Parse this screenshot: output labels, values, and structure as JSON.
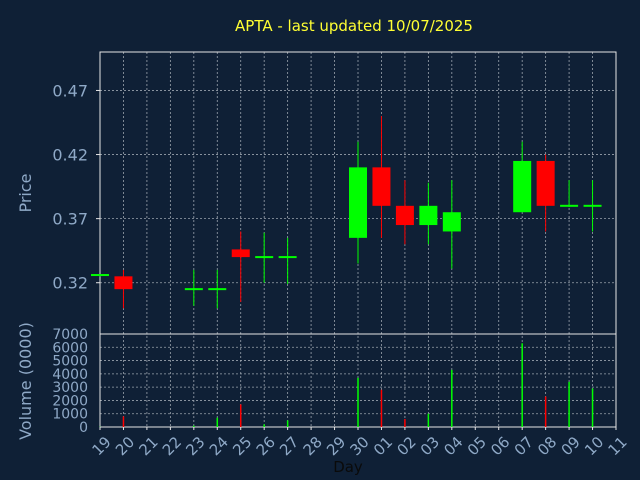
{
  "colors": {
    "background": "#0f2036",
    "axis": "#e6e6e6",
    "grid": "#9aa3ad",
    "title": "#ffff33",
    "label": "#8fa9c7",
    "up": "#00ff00",
    "down": "#ff0000"
  },
  "chart_data": [
    {
      "type": "candlestick",
      "title": "APTA - last updated 10/07/2025",
      "ylabel": "Price",
      "ylim": [
        0.28,
        0.5
      ],
      "yticks": [
        "0.32",
        "0.37",
        "0.42",
        "0.47"
      ],
      "ytick_values": [
        0.32,
        0.37,
        0.42,
        0.47
      ],
      "grid": true,
      "x": [
        "19",
        "20",
        "21",
        "22",
        "23",
        "24",
        "25",
        "26",
        "27",
        "28",
        "29",
        "30",
        "01",
        "02",
        "03",
        "04",
        "05",
        "06",
        "07",
        "08",
        "09",
        "10",
        "11"
      ],
      "candles": [
        {
          "x": "19",
          "open": 0.325,
          "high": 0.326,
          "low": 0.325,
          "close": 0.326,
          "dir": "up"
        },
        {
          "x": "20",
          "open": 0.325,
          "high": 0.33,
          "low": 0.3,
          "close": 0.315,
          "dir": "down"
        },
        {
          "x": "23",
          "open": 0.315,
          "high": 0.33,
          "low": 0.302,
          "close": 0.315,
          "dir": "up"
        },
        {
          "x": "24",
          "open": 0.315,
          "high": 0.33,
          "low": 0.3,
          "close": 0.315,
          "dir": "up"
        },
        {
          "x": "25",
          "open": 0.346,
          "high": 0.36,
          "low": 0.305,
          "close": 0.34,
          "dir": "down"
        },
        {
          "x": "26",
          "open": 0.34,
          "high": 0.359,
          "low": 0.32,
          "close": 0.34,
          "dir": "up"
        },
        {
          "x": "27",
          "open": 0.34,
          "high": 0.355,
          "low": 0.319,
          "close": 0.34,
          "dir": "up"
        },
        {
          "x": "30",
          "open": 0.355,
          "high": 0.43,
          "low": 0.335,
          "close": 0.41,
          "dir": "up"
        },
        {
          "x": "01",
          "open": 0.41,
          "high": 0.45,
          "low": 0.355,
          "close": 0.38,
          "dir": "down"
        },
        {
          "x": "02",
          "open": 0.38,
          "high": 0.4,
          "low": 0.35,
          "close": 0.365,
          "dir": "down"
        },
        {
          "x": "03",
          "open": 0.365,
          "high": 0.398,
          "low": 0.35,
          "close": 0.38,
          "dir": "up"
        },
        {
          "x": "04",
          "open": 0.36,
          "high": 0.4,
          "low": 0.331,
          "close": 0.375,
          "dir": "up"
        },
        {
          "x": "07",
          "open": 0.375,
          "high": 0.43,
          "low": 0.375,
          "close": 0.415,
          "dir": "up"
        },
        {
          "x": "08",
          "open": 0.415,
          "high": 0.42,
          "low": 0.36,
          "close": 0.38,
          "dir": "down"
        },
        {
          "x": "09",
          "open": 0.379,
          "high": 0.4,
          "low": 0.379,
          "close": 0.38,
          "dir": "up"
        },
        {
          "x": "10",
          "open": 0.379,
          "high": 0.4,
          "low": 0.36,
          "close": 0.38,
          "dir": "up"
        }
      ]
    },
    {
      "type": "bar",
      "ylabel": "Volume (0000)",
      "xlabel": "Day",
      "ylim": [
        0,
        7000
      ],
      "yticks": [
        "0",
        "1000",
        "2000",
        "3000",
        "4000",
        "5000",
        "6000",
        "7000"
      ],
      "ytick_values": [
        0,
        1000,
        2000,
        3000,
        4000,
        5000,
        6000,
        7000
      ],
      "grid": true,
      "categories": [
        "19",
        "20",
        "21",
        "22",
        "23",
        "24",
        "25",
        "26",
        "27",
        "28",
        "29",
        "30",
        "01",
        "02",
        "03",
        "04",
        "05",
        "06",
        "07",
        "08",
        "09",
        "10",
        "11"
      ],
      "bars": [
        {
          "x": "19",
          "value": 20,
          "dir": "up"
        },
        {
          "x": "20",
          "value": 800,
          "dir": "down"
        },
        {
          "x": "23",
          "value": 100,
          "dir": "up"
        },
        {
          "x": "24",
          "value": 700,
          "dir": "up"
        },
        {
          "x": "25",
          "value": 1700,
          "dir": "down"
        },
        {
          "x": "26",
          "value": 200,
          "dir": "up"
        },
        {
          "x": "27",
          "value": 500,
          "dir": "up"
        },
        {
          "x": "30",
          "value": 3700,
          "dir": "up"
        },
        {
          "x": "01",
          "value": 2800,
          "dir": "down"
        },
        {
          "x": "02",
          "value": 600,
          "dir": "down"
        },
        {
          "x": "03",
          "value": 1000,
          "dir": "up"
        },
        {
          "x": "04",
          "value": 4300,
          "dir": "up"
        },
        {
          "x": "07",
          "value": 6300,
          "dir": "up"
        },
        {
          "x": "08",
          "value": 2300,
          "dir": "down"
        },
        {
          "x": "09",
          "value": 3400,
          "dir": "up"
        },
        {
          "x": "10",
          "value": 2900,
          "dir": "up"
        }
      ]
    }
  ]
}
